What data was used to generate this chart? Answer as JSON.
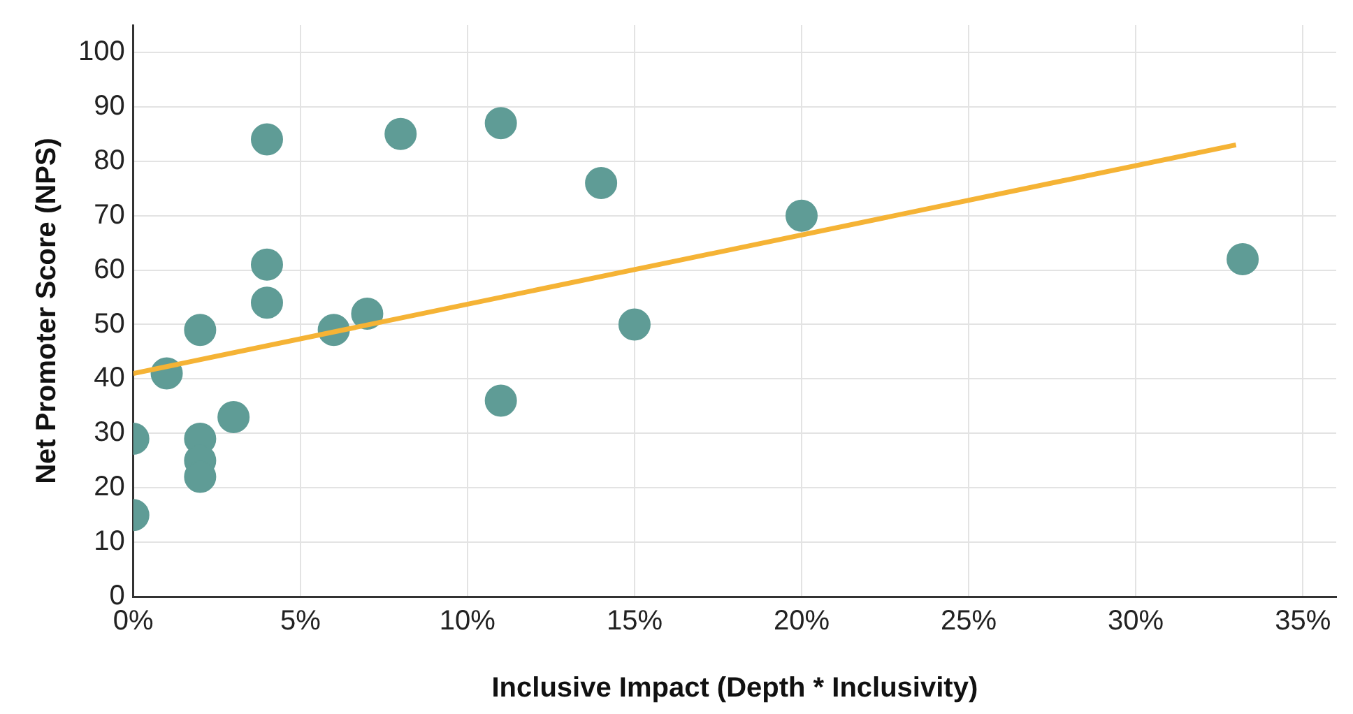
{
  "chart_data": {
    "type": "scatter",
    "xlabel": "Inclusive Impact (Depth * Inclusivity)",
    "ylabel": "Net Promoter Score (NPS)",
    "xlim": [
      0,
      36
    ],
    "ylim": [
      0,
      105
    ],
    "xticks": [
      {
        "value": 0,
        "label": "0%"
      },
      {
        "value": 5,
        "label": "5%"
      },
      {
        "value": 10,
        "label": "10%"
      },
      {
        "value": 15,
        "label": "15%"
      },
      {
        "value": 20,
        "label": "20%"
      },
      {
        "value": 25,
        "label": "25%"
      },
      {
        "value": 30,
        "label": "30%"
      },
      {
        "value": 35,
        "label": "35%"
      }
    ],
    "yticks": [
      0,
      10,
      20,
      30,
      40,
      50,
      60,
      70,
      80,
      90,
      100
    ],
    "grid": true,
    "legend": false,
    "marker": "circle",
    "series": [
      {
        "type": "scatter",
        "color": "#5f9c96",
        "x": [
          0,
          0,
          1,
          2,
          2,
          2,
          2,
          3,
          4,
          4,
          4,
          6,
          7,
          8,
          11,
          11,
          14,
          15,
          20,
          33.2
        ],
        "values": [
          15,
          29,
          41,
          49,
          29,
          25,
          22,
          33,
          84,
          61,
          54,
          49,
          52,
          85,
          87,
          36,
          76,
          50,
          70,
          62
        ]
      },
      {
        "type": "line",
        "color": "#f5b335",
        "x": [
          0,
          33
        ],
        "values": [
          41,
          83
        ],
        "marker": "none",
        "line_style": "solid"
      }
    ]
  }
}
